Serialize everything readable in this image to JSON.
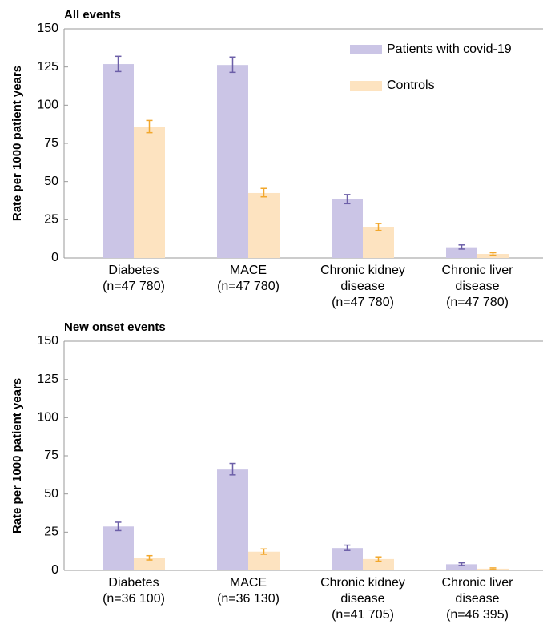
{
  "chart_data": [
    {
      "type": "bar",
      "title": "All events",
      "ylabel": "Rate per 1000 patient years",
      "xlabel": "",
      "ylim": [
        0,
        150
      ],
      "yticks": [
        0,
        25,
        50,
        75,
        100,
        125,
        150
      ],
      "grid": false,
      "legend_position": "top-right",
      "categories": [
        [
          "Diabetes",
          "(n=47 780)"
        ],
        [
          "MACE",
          "(n=47 780)"
        ],
        [
          "Chronic kidney",
          "disease",
          "(n=47 780)"
        ],
        [
          "Chronic liver",
          "disease",
          "(n=47 780)"
        ]
      ],
      "series": [
        {
          "name": "Patients with covid-19",
          "color": "#cbc5e6",
          "error_color": "#6c5fa8",
          "values": [
            126.9,
            126.3,
            38.3,
            7.0
          ],
          "ci_low": [
            122.0,
            121.5,
            35.5,
            5.8
          ],
          "ci_high": [
            132.0,
            131.5,
            41.5,
            8.5
          ]
        },
        {
          "name": "Controls",
          "color": "#fde3c0",
          "error_color": "#f2a72b",
          "values": [
            85.9,
            42.5,
            20.1,
            2.6
          ],
          "ci_low": [
            82.0,
            40.0,
            18.0,
            1.8
          ],
          "ci_high": [
            90.0,
            45.5,
            22.5,
            3.4
          ]
        }
      ]
    },
    {
      "type": "bar",
      "title": "New onset events",
      "ylabel": "Rate per 1000 patient years",
      "xlabel": "",
      "ylim": [
        0,
        150
      ],
      "yticks": [
        0,
        25,
        50,
        75,
        100,
        125,
        150
      ],
      "grid": false,
      "categories": [
        [
          "Diabetes",
          "(n=36 100)"
        ],
        [
          "MACE",
          "(n=36 130)"
        ],
        [
          "Chronic kidney",
          "disease",
          "(n=41 705)"
        ],
        [
          "Chronic liver",
          "disease",
          "(n=46 395)"
        ]
      ],
      "series": [
        {
          "name": "Patients with covid-19",
          "color": "#cbc5e6",
          "error_color": "#6c5fa8",
          "values": [
            28.7,
            66.0,
            14.6,
            4.0
          ],
          "ci_low": [
            26.0,
            62.5,
            13.0,
            3.2
          ],
          "ci_high": [
            31.5,
            70.0,
            16.5,
            4.9
          ]
        },
        {
          "name": "Controls",
          "color": "#fde3c0",
          "error_color": "#f2a72b",
          "values": [
            8.1,
            12.2,
            7.4,
            1.1
          ],
          "ci_low": [
            6.8,
            10.5,
            6.0,
            0.6
          ],
          "ci_high": [
            9.6,
            14.0,
            8.8,
            1.6
          ]
        }
      ]
    }
  ]
}
